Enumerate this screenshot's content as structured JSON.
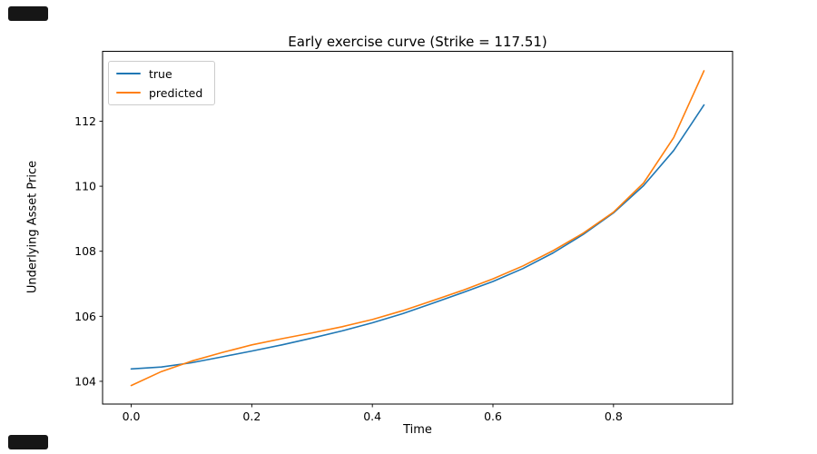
{
  "chart_data": {
    "type": "line",
    "title": "Early exercise curve (Strike = 117.51)",
    "xlabel": "Time",
    "ylabel": "Underlying Asset Price",
    "xlim": [
      -0.0475,
      0.9975
    ],
    "ylim": [
      103.3,
      114.15
    ],
    "xticks": [
      0.0,
      0.2,
      0.4,
      0.6,
      0.8
    ],
    "xtick_labels": [
      "0.0",
      "0.2",
      "0.4",
      "0.6",
      "0.8"
    ],
    "yticks": [
      104,
      106,
      108,
      110,
      112
    ],
    "ytick_labels": [
      "104",
      "106",
      "108",
      "110",
      "112"
    ],
    "grid": false,
    "legend_position": "upper left",
    "x": [
      0.0,
      0.05,
      0.1,
      0.15,
      0.2,
      0.25,
      0.3,
      0.35,
      0.4,
      0.45,
      0.5,
      0.55,
      0.6,
      0.65,
      0.7,
      0.75,
      0.8,
      0.85,
      0.9,
      0.95
    ],
    "series": [
      {
        "name": "true",
        "color": "#1f77b4",
        "values": [
          104.38,
          104.44,
          104.57,
          104.75,
          104.93,
          105.12,
          105.33,
          105.55,
          105.8,
          106.08,
          106.4,
          106.73,
          107.07,
          107.47,
          107.95,
          108.52,
          109.18,
          110.02,
          111.1,
          112.5
        ]
      },
      {
        "name": "predicted",
        "color": "#ff7f0e",
        "values": [
          103.87,
          104.3,
          104.62,
          104.88,
          105.12,
          105.31,
          105.49,
          105.68,
          105.9,
          106.17,
          106.48,
          106.8,
          107.15,
          107.55,
          108.02,
          108.56,
          109.2,
          110.1,
          111.5,
          113.55
        ]
      }
    ]
  }
}
